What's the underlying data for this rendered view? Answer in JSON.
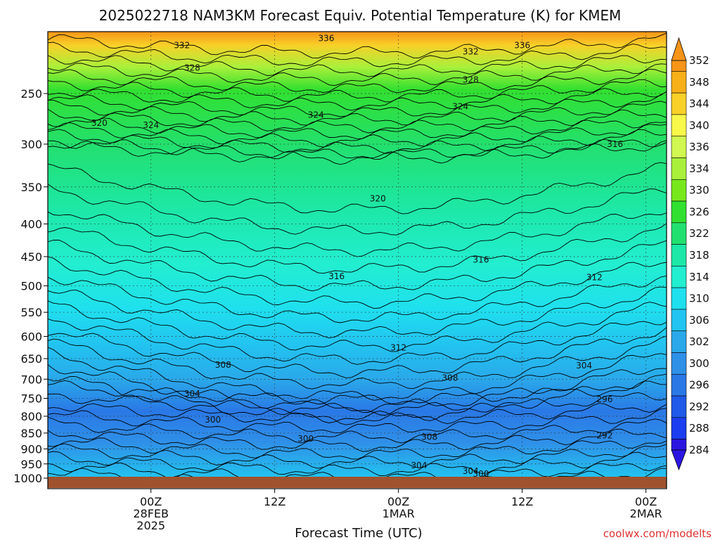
{
  "chart_data": {
    "type": "heatmap",
    "title": "2025022718 NAM3KM Forecast Equiv. Potential Temperature (K) for KMEM",
    "xlabel": "Forecast Time (UTC)",
    "ylabel": "",
    "credit": "coolwx.com/modelts",
    "x_range_hours": [
      -10,
      50
    ],
    "x_ticks": [
      {
        "hour": 0,
        "lines": [
          "00Z",
          "28FEB",
          "2025"
        ]
      },
      {
        "hour": 12,
        "lines": [
          "12Z"
        ]
      },
      {
        "hour": 24,
        "lines": [
          "00Z",
          "1MAR"
        ]
      },
      {
        "hour": 36,
        "lines": [
          "12Z"
        ]
      },
      {
        "hour": 48,
        "lines": [
          "00Z",
          "2MAR"
        ]
      }
    ],
    "y_axis": {
      "scale": "pressure-log",
      "range_hpa": [
        1000,
        200
      ],
      "inverted": true,
      "ticks": [
        250,
        300,
        350,
        400,
        450,
        500,
        550,
        600,
        650,
        700,
        750,
        800,
        850,
        900,
        950,
        1000
      ]
    },
    "grid": true,
    "colorbar": {
      "units": "K",
      "levels": [
        284,
        288,
        292,
        296,
        300,
        302,
        306,
        310,
        314,
        318,
        322,
        326,
        330,
        334,
        336,
        340,
        344,
        348,
        352
      ],
      "colors": [
        "#2a16e0",
        "#1b3ef0",
        "#1f5ae8",
        "#2a78e6",
        "#2f90e8",
        "#2aa8ea",
        "#22c4f0",
        "#1fe0ee",
        "#22eed0",
        "#1de8a8",
        "#22e070",
        "#32e030",
        "#78e81c",
        "#a8f03a",
        "#d0f850",
        "#f8f84a",
        "#f8d028",
        "#f8b018",
        "#f89418"
      ]
    },
    "contour_labels": [
      {
        "value": 336,
        "hour": 17,
        "hpa": 205
      },
      {
        "value": 336,
        "hour": 36,
        "hpa": 210
      },
      {
        "value": 332,
        "hour": 3,
        "hpa": 210
      },
      {
        "value": 332,
        "hour": 31,
        "hpa": 215
      },
      {
        "value": 328,
        "hour": 4,
        "hpa": 228
      },
      {
        "value": 328,
        "hour": 31,
        "hpa": 238
      },
      {
        "value": 324,
        "hour": 0,
        "hpa": 280
      },
      {
        "value": 324,
        "hour": 16,
        "hpa": 270
      },
      {
        "value": 324,
        "hour": 30,
        "hpa": 262
      },
      {
        "value": 320,
        "hour": -5,
        "hpa": 278
      },
      {
        "value": 320,
        "hour": 22,
        "hpa": 365
      },
      {
        "value": 316,
        "hour": 45,
        "hpa": 300
      },
      {
        "value": 316,
        "hour": 18,
        "hpa": 483
      },
      {
        "value": 316,
        "hour": 32,
        "hpa": 455
      },
      {
        "value": 312,
        "hour": 43,
        "hpa": 485
      },
      {
        "value": 312,
        "hour": 24,
        "hpa": 625
      },
      {
        "value": 308,
        "hour": 7,
        "hpa": 665
      },
      {
        "value": 308,
        "hour": 29,
        "hpa": 697
      },
      {
        "value": 308,
        "hour": 27,
        "hpa": 862
      },
      {
        "value": 304,
        "hour": 4,
        "hpa": 738
      },
      {
        "value": 304,
        "hour": 42,
        "hpa": 667
      },
      {
        "value": 304,
        "hour": 26,
        "hpa": 955
      },
      {
        "value": 304,
        "hour": 31,
        "hpa": 975
      },
      {
        "value": 300,
        "hour": 6,
        "hpa": 810
      },
      {
        "value": 300,
        "hour": 15,
        "hpa": 868
      },
      {
        "value": 300,
        "hour": 32,
        "hpa": 985
      },
      {
        "value": 296,
        "hour": 44,
        "hpa": 753
      },
      {
        "value": 292,
        "hour": 44,
        "hpa": 858
      }
    ]
  }
}
